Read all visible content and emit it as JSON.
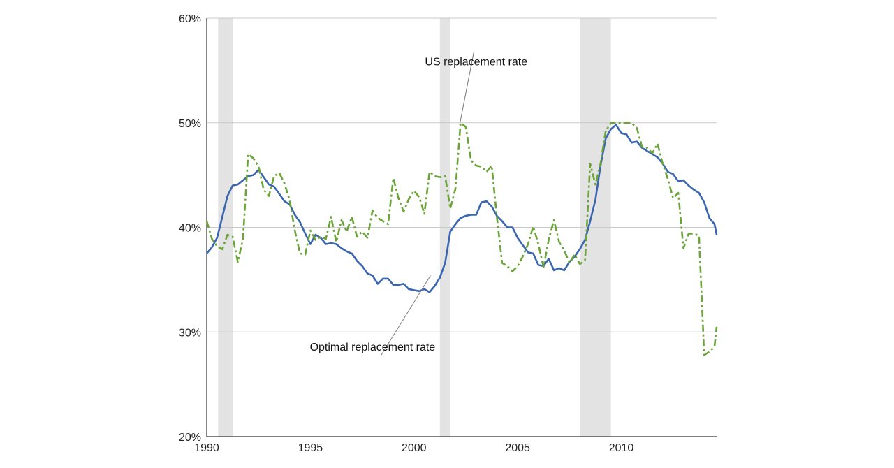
{
  "chart_data": {
    "type": "line",
    "title": "",
    "xlabel": "",
    "ylabel": "",
    "xlim": [
      1990.0,
      2014.6
    ],
    "ylim": [
      20,
      60
    ],
    "x_ticks": [
      {
        "value": 1990,
        "label": "1990"
      },
      {
        "value": 1995,
        "label": "1995"
      },
      {
        "value": 2000,
        "label": "2000"
      },
      {
        "value": 2005,
        "label": "2005"
      },
      {
        "value": 2010,
        "label": "2010"
      }
    ],
    "y_ticks": [
      {
        "value": 20,
        "label": "20%"
      },
      {
        "value": 30,
        "label": "30%"
      },
      {
        "value": 40,
        "label": "40%"
      },
      {
        "value": 50,
        "label": "50%"
      },
      {
        "value": 60,
        "label": "60%"
      }
    ],
    "grid": "horizontal",
    "recession_shading": [
      {
        "start": 1990.55,
        "end": 1991.25
      },
      {
        "start": 2001.25,
        "end": 2001.75
      },
      {
        "start": 2008.0,
        "end": 2009.5
      }
    ],
    "annotations": [
      {
        "text": "US replacement rate",
        "series": 1,
        "at": [
          2002.2,
          49.8
        ],
        "label_at": [
          2003,
          55.5
        ]
      },
      {
        "text": "Optimal replacement rate",
        "series": 0,
        "at": [
          2000.8,
          35.4
        ],
        "label_at": [
          1998,
          28.2
        ]
      }
    ],
    "series": [
      {
        "color": "#3A65B0",
        "dash": "solid",
        "points": [
          [
            1990.0,
            37.5
          ],
          [
            1990.25,
            38.1
          ],
          [
            1990.5,
            39.0
          ],
          [
            1990.75,
            41.0
          ],
          [
            1991.0,
            43.0
          ],
          [
            1991.25,
            44.0
          ],
          [
            1991.5,
            44.1
          ],
          [
            1991.75,
            44.5
          ],
          [
            1992.0,
            44.9
          ],
          [
            1992.25,
            45.0
          ],
          [
            1992.5,
            45.5
          ],
          [
            1992.75,
            44.8
          ],
          [
            1993.0,
            44.1
          ],
          [
            1993.25,
            43.9
          ],
          [
            1993.5,
            43.2
          ],
          [
            1993.75,
            42.5
          ],
          [
            1994.0,
            42.2
          ],
          [
            1994.25,
            41.2
          ],
          [
            1994.5,
            40.5
          ],
          [
            1994.75,
            39.4
          ],
          [
            1995.0,
            38.4
          ],
          [
            1995.25,
            39.3
          ],
          [
            1995.5,
            39.0
          ],
          [
            1995.75,
            38.4
          ],
          [
            1996.0,
            38.5
          ],
          [
            1996.25,
            38.4
          ],
          [
            1996.5,
            38.0
          ],
          [
            1996.75,
            37.7
          ],
          [
            1997.0,
            37.5
          ],
          [
            1997.25,
            36.8
          ],
          [
            1997.5,
            36.3
          ],
          [
            1997.75,
            35.6
          ],
          [
            1998.0,
            35.4
          ],
          [
            1998.25,
            34.6
          ],
          [
            1998.5,
            35.1
          ],
          [
            1998.75,
            35.1
          ],
          [
            1999.0,
            34.5
          ],
          [
            1999.25,
            34.5
          ],
          [
            1999.5,
            34.6
          ],
          [
            1999.75,
            34.1
          ],
          [
            2000.0,
            34.0
          ],
          [
            2000.25,
            33.9
          ],
          [
            2000.5,
            34.1
          ],
          [
            2000.75,
            33.8
          ],
          [
            2001.0,
            34.4
          ],
          [
            2001.25,
            35.2
          ],
          [
            2001.5,
            36.6
          ],
          [
            2001.75,
            39.6
          ],
          [
            2002.0,
            40.3
          ],
          [
            2002.25,
            40.9
          ],
          [
            2002.5,
            41.1
          ],
          [
            2002.75,
            41.2
          ],
          [
            2003.0,
            41.2
          ],
          [
            2003.25,
            42.4
          ],
          [
            2003.5,
            42.5
          ],
          [
            2003.75,
            42.0
          ],
          [
            2004.0,
            41.1
          ],
          [
            2004.25,
            40.6
          ],
          [
            2004.5,
            40.0
          ],
          [
            2004.75,
            40.0
          ],
          [
            2005.0,
            39.0
          ],
          [
            2005.25,
            38.3
          ],
          [
            2005.5,
            37.6
          ],
          [
            2005.75,
            37.5
          ],
          [
            2006.0,
            36.4
          ],
          [
            2006.25,
            36.3
          ],
          [
            2006.5,
            37.0
          ],
          [
            2006.75,
            35.9
          ],
          [
            2007.0,
            36.1
          ],
          [
            2007.25,
            35.9
          ],
          [
            2007.5,
            36.7
          ],
          [
            2007.75,
            37.2
          ],
          [
            2008.0,
            37.9
          ],
          [
            2008.25,
            38.8
          ],
          [
            2008.5,
            40.6
          ],
          [
            2008.75,
            42.6
          ],
          [
            2009.0,
            45.9
          ],
          [
            2009.25,
            48.5
          ],
          [
            2009.5,
            49.4
          ],
          [
            2009.75,
            49.8
          ],
          [
            2010.0,
            49.0
          ],
          [
            2010.25,
            48.9
          ],
          [
            2010.5,
            48.1
          ],
          [
            2010.75,
            48.2
          ],
          [
            2011.0,
            47.6
          ],
          [
            2011.25,
            47.3
          ],
          [
            2011.5,
            47.0
          ],
          [
            2011.75,
            46.7
          ],
          [
            2012.0,
            46.1
          ],
          [
            2012.25,
            45.3
          ],
          [
            2012.5,
            45.1
          ],
          [
            2012.75,
            44.4
          ],
          [
            2013.0,
            44.5
          ],
          [
            2013.25,
            44.0
          ],
          [
            2013.5,
            43.6
          ],
          [
            2013.75,
            43.3
          ],
          [
            2014.0,
            42.4
          ],
          [
            2014.25,
            40.9
          ],
          [
            2014.5,
            40.3
          ],
          [
            2014.6,
            39.3
          ]
        ]
      },
      {
        "color": "#6BA539",
        "dash": "dashdot",
        "points": [
          [
            1990.0,
            40.6
          ],
          [
            1990.25,
            38.9
          ],
          [
            1990.5,
            38.2
          ],
          [
            1990.75,
            37.9
          ],
          [
            1991.0,
            39.3
          ],
          [
            1991.25,
            39.1
          ],
          [
            1991.5,
            36.7
          ],
          [
            1991.75,
            38.9
          ],
          [
            1992.0,
            47.0
          ],
          [
            1992.25,
            46.6
          ],
          [
            1992.5,
            45.8
          ],
          [
            1992.75,
            43.6
          ],
          [
            1993.0,
            43.0
          ],
          [
            1993.25,
            44.9
          ],
          [
            1993.5,
            45.2
          ],
          [
            1993.75,
            44.2
          ],
          [
            1994.0,
            42.6
          ],
          [
            1994.25,
            39.7
          ],
          [
            1994.5,
            37.5
          ],
          [
            1994.75,
            37.4
          ],
          [
            1995.0,
            39.7
          ],
          [
            1995.25,
            38.8
          ],
          [
            1995.5,
            39.1
          ],
          [
            1995.75,
            38.9
          ],
          [
            1996.0,
            41.0
          ],
          [
            1996.25,
            38.6
          ],
          [
            1996.5,
            40.7
          ],
          [
            1996.75,
            39.6
          ],
          [
            1997.0,
            41.0
          ],
          [
            1997.25,
            39.1
          ],
          [
            1997.5,
            39.6
          ],
          [
            1997.75,
            39.0
          ],
          [
            1998.0,
            41.6
          ],
          [
            1998.25,
            40.9
          ],
          [
            1998.5,
            40.6
          ],
          [
            1998.75,
            40.3
          ],
          [
            1999.0,
            44.7
          ],
          [
            1999.25,
            42.8
          ],
          [
            1999.5,
            41.5
          ],
          [
            1999.75,
            42.7
          ],
          [
            2000.0,
            43.5
          ],
          [
            2000.25,
            42.9
          ],
          [
            2000.5,
            41.3
          ],
          [
            2000.75,
            45.3
          ],
          [
            2001.0,
            44.9
          ],
          [
            2001.25,
            44.8
          ],
          [
            2001.5,
            44.9
          ],
          [
            2001.75,
            41.8
          ],
          [
            2002.0,
            43.7
          ],
          [
            2002.25,
            50.0
          ],
          [
            2002.5,
            49.6
          ],
          [
            2002.75,
            46.4
          ],
          [
            2003.0,
            45.9
          ],
          [
            2003.25,
            45.8
          ],
          [
            2003.5,
            45.3
          ],
          [
            2003.75,
            45.9
          ],
          [
            2004.0,
            41.0
          ],
          [
            2004.25,
            36.6
          ],
          [
            2004.5,
            36.3
          ],
          [
            2004.75,
            35.8
          ],
          [
            2005.0,
            36.3
          ],
          [
            2005.25,
            37.2
          ],
          [
            2005.5,
            38.4
          ],
          [
            2005.75,
            40.1
          ],
          [
            2006.0,
            38.4
          ],
          [
            2006.25,
            36.2
          ],
          [
            2006.5,
            38.8
          ],
          [
            2006.75,
            40.7
          ],
          [
            2007.0,
            38.6
          ],
          [
            2007.25,
            37.8
          ],
          [
            2007.5,
            36.6
          ],
          [
            2007.75,
            37.4
          ],
          [
            2008.0,
            36.5
          ],
          [
            2008.25,
            36.8
          ],
          [
            2008.5,
            46.1
          ],
          [
            2008.75,
            44.1
          ],
          [
            2009.0,
            46.1
          ],
          [
            2009.25,
            49.2
          ],
          [
            2009.5,
            50.0
          ],
          [
            2009.75,
            50.0
          ],
          [
            2010.0,
            50.0
          ],
          [
            2010.25,
            50.0
          ],
          [
            2010.5,
            50.0
          ],
          [
            2010.75,
            49.5
          ],
          [
            2011.0,
            47.7
          ],
          [
            2011.25,
            47.6
          ],
          [
            2011.5,
            47.1
          ],
          [
            2011.75,
            48.0
          ],
          [
            2012.0,
            46.1
          ],
          [
            2012.25,
            44.6
          ],
          [
            2012.5,
            42.8
          ],
          [
            2012.75,
            43.3
          ],
          [
            2013.0,
            38.0
          ],
          [
            2013.25,
            39.4
          ],
          [
            2013.5,
            39.4
          ],
          [
            2013.75,
            39.2
          ],
          [
            2014.0,
            27.8
          ],
          [
            2014.25,
            28.1
          ],
          [
            2014.5,
            28.6
          ],
          [
            2014.6,
            30.5
          ]
        ]
      }
    ]
  }
}
